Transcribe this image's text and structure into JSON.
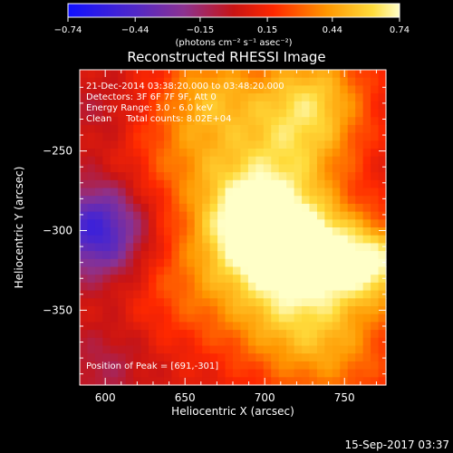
{
  "chart_data": {
    "type": "heatmap",
    "title": "Reconstructed RHESSI Image",
    "xlabel": "Heliocentric X (arcsec)",
    "ylabel": "Heliocentric Y (arcsec)",
    "xlim": [
      584,
      776
    ],
    "ylim": [
      -397,
      -199
    ],
    "x_ticks": [
      600,
      650,
      700,
      750
    ],
    "x_tick_labels": [
      "600",
      "650",
      "700",
      "750"
    ],
    "y_ticks": [
      -250,
      -300,
      -350
    ],
    "y_tick_labels": [
      "−250",
      "−300",
      "−350"
    ],
    "colorbar": {
      "range": [
        -0.74,
        0.74
      ],
      "ticks": [
        -0.74,
        -0.44,
        -0.15,
        0.15,
        0.44,
        0.74
      ],
      "tick_labels": [
        "−0.74",
        "−0.44",
        "−0.15",
        "0.15",
        "0.44",
        "0.74"
      ],
      "unit_label": "(photons cm⁻² s⁻¹ asec⁻²)"
    },
    "annotations": [
      "21-Dec-2014 03:38:20.000 to 03:48:20.000",
      "Detectors: 3F 6F 7F 9F, Att 0",
      "Energy Range: 3.0 - 6.0 keV",
      "Clean     Total counts: 8.02E+04"
    ],
    "peak_label": "Position of Peak = [691,-301]",
    "peak": [
      691,
      -301
    ],
    "sources": [
      {
        "x": 691,
        "y": -297,
        "value": 0.74,
        "radius": 24
      },
      {
        "x": 733,
        "y": -314,
        "value": 0.64,
        "radius": 22
      },
      {
        "x": 772,
        "y": -321,
        "value": 0.6,
        "radius": 18
      },
      {
        "x": 730,
        "y": -215,
        "value": 0.5,
        "radius": 25
      },
      {
        "x": 665,
        "y": -212,
        "value": 0.42,
        "radius": 22
      },
      {
        "x": 708,
        "y": -348,
        "value": 0.45,
        "radius": 30
      },
      {
        "x": 712,
        "y": -255,
        "value": 0.45,
        "radius": 30
      },
      {
        "x": 650,
        "y": -255,
        "value": 0.3,
        "radius": 25
      },
      {
        "x": 650,
        "y": -335,
        "value": 0.25,
        "radius": 25
      },
      {
        "x": 745,
        "y": -375,
        "value": 0.35,
        "radius": 28
      },
      {
        "x": 595,
        "y": -300,
        "value": -0.55,
        "radius": 20
      },
      {
        "x": 595,
        "y": -225,
        "value": -0.05,
        "radius": 14
      },
      {
        "x": 600,
        "y": -385,
        "value": -0.1,
        "radius": 18
      }
    ],
    "background_value": 0.05,
    "grid": false
  },
  "footer": {
    "timestamp": "15-Sep-2017 03:37"
  }
}
